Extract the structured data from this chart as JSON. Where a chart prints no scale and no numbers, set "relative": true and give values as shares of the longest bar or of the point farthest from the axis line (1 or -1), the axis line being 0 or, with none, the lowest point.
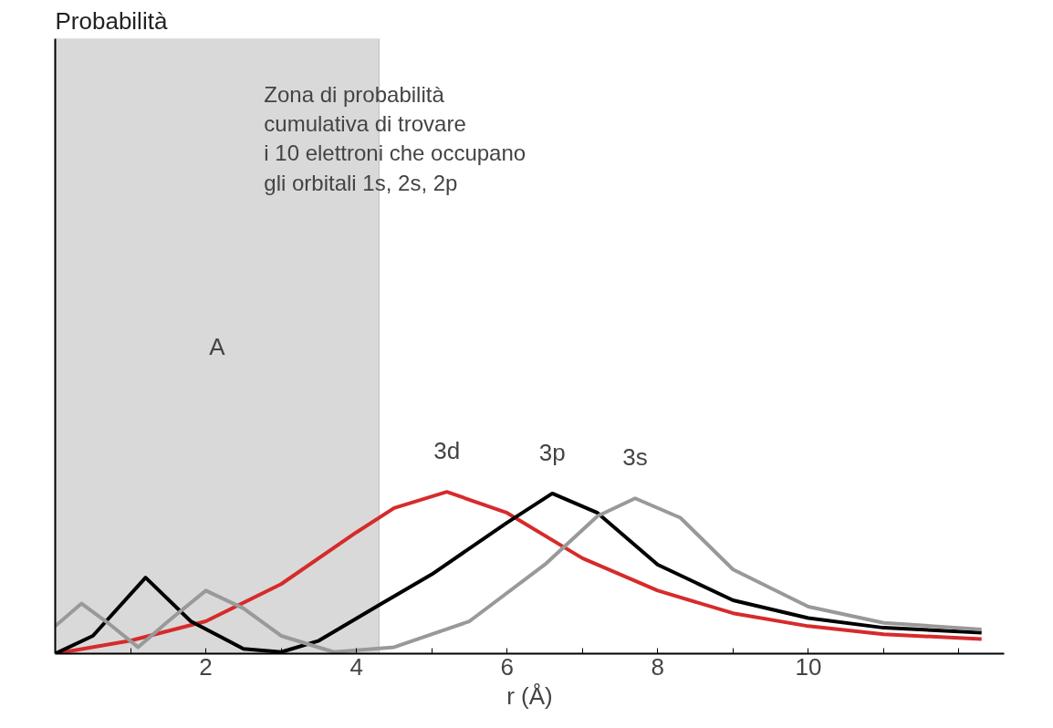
{
  "chart_data": {
    "type": "line",
    "relative": true,
    "xlabel": "r (Å)",
    "xlim": [
      0,
      12.6
    ],
    "xticks": [
      {
        "value": 1,
        "label": null
      },
      2,
      {
        "value": 3,
        "label": null
      },
      4,
      {
        "value": 5,
        "label": null
      },
      6,
      {
        "value": 7,
        "label": null
      },
      8,
      {
        "value": 9,
        "label": null
      },
      10,
      {
        "value": 11,
        "label": null
      },
      {
        "value": 12,
        "label": null
      }
    ],
    "series": [
      {
        "name": "3d",
        "color": "#d62b2b",
        "x": [
          0,
          1,
          2,
          3,
          4,
          4.5,
          5.2,
          6,
          7,
          8,
          9,
          10,
          11,
          12.3
        ],
        "values": [
          0,
          0.08,
          0.2,
          0.43,
          0.75,
          0.9,
          1,
          0.87,
          0.59,
          0.39,
          0.25,
          0.17,
          0.12,
          0.09
        ]
      },
      {
        "name": "3p",
        "color": "#000000",
        "x": [
          0,
          0.5,
          1.2,
          1.8,
          2.5,
          3,
          3.5,
          4.3,
          5,
          6,
          6.6,
          7.2,
          8,
          9,
          10,
          11,
          12.3
        ],
        "values": [
          0,
          0.11,
          0.47,
          0.2,
          0.03,
          0.01,
          0.08,
          0.3,
          0.49,
          0.81,
          0.99,
          0.87,
          0.55,
          0.33,
          0.22,
          0.16,
          0.13
        ]
      },
      {
        "name": "3s",
        "color": "#999999",
        "x": [
          0,
          0.35,
          0.7,
          1.1,
          1.5,
          2,
          2.5,
          3,
          3.7,
          4.5,
          5.5,
          6.5,
          7.2,
          7.7,
          8.3,
          9,
          10,
          11,
          12.3
        ],
        "values": [
          0.17,
          0.31,
          0.19,
          0.04,
          0.2,
          0.39,
          0.28,
          0.11,
          0.01,
          0.04,
          0.2,
          0.55,
          0.85,
          0.96,
          0.84,
          0.52,
          0.29,
          0.19,
          0.15
        ]
      }
    ],
    "bands": [
      {
        "axis": "x",
        "from": 0,
        "to": 4.3,
        "label": "A",
        "color": "#d9d9d9"
      }
    ],
    "annotations": [
      "Probabilità",
      "Zona di probabilità\ncumulativa di trovare\ni 10 elettroni che occupano\ngli orbitali 1s, 2s, 2p"
    ],
    "grid": false,
    "marker": "none",
    "line_style": "solid"
  }
}
